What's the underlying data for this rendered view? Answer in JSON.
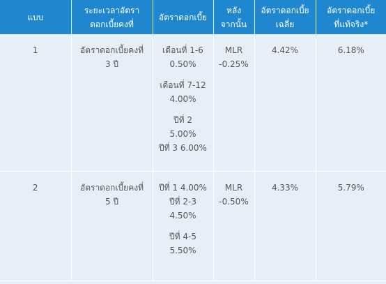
{
  "table": {
    "headers": [
      [
        "แบบ"
      ],
      [
        "ระยะเวลาอัตรา",
        "ดอกเบี้ยคงที่"
      ],
      [
        "อัตราดอกเบี้ย"
      ],
      [
        "หลัง",
        "จากนั้น"
      ],
      [
        "อัตราดอกเบี้ย",
        "เฉลี่ย"
      ],
      [
        "อัตราดอกเบี้ย",
        "ที่แท้จริง*"
      ]
    ],
    "rows": [
      {
        "plan": "1",
        "fixed_period": [
          "อัตราดอกเบี้ยคงที่",
          "3 ปี"
        ],
        "rate_groups": [
          [
            "เดือนที่ 1-6",
            "0.50%"
          ],
          [
            "เดือนที่ 7-12",
            "4.00%"
          ],
          [
            "ปีที่ 2",
            "5.00%",
            "ปีที่ 3  6.00%"
          ]
        ],
        "after": [
          "MLR",
          "-0.25%"
        ],
        "average": "4.42%",
        "effective": "6.18%"
      },
      {
        "plan": "2",
        "fixed_period": [
          "อัตราดอกเบี้ยคงที่",
          "5 ปี"
        ],
        "rate_groups": [
          [
            "ปีที่ 1 4.00%",
            "ปีที่ 2-3",
            "4.50%"
          ],
          [
            "ปีที่ 4-5",
            "5.50%"
          ]
        ],
        "after": [
          "MLR",
          "-0.50%"
        ],
        "average": "4.33%",
        "effective": "5.79%"
      }
    ]
  }
}
